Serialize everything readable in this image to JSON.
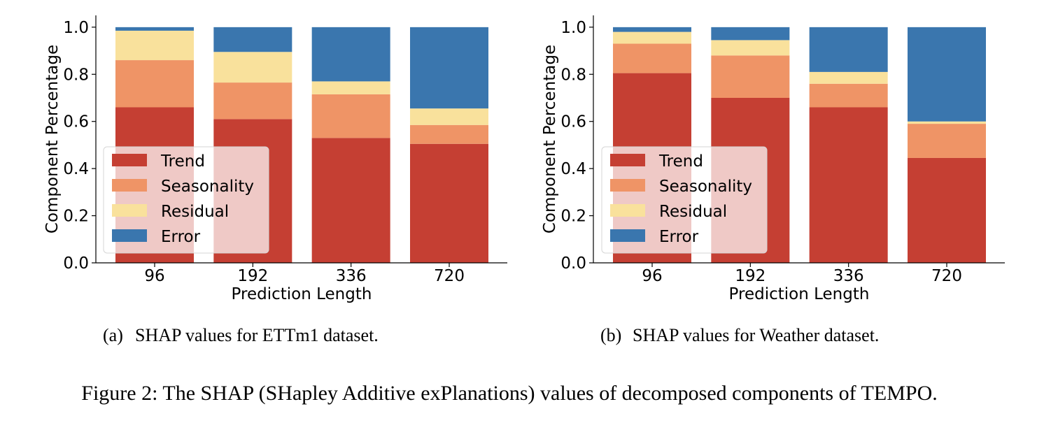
{
  "colors": {
    "Trend": "#c53f33",
    "Seasonality": "#ef9466",
    "Residual": "#f9e19c",
    "Error": "#3a76ae"
  },
  "chart_data": [
    {
      "type": "bar",
      "stacked": true,
      "caption_label": "(a)",
      "caption": "SHAP values for ETTm1 dataset.",
      "xlabel": "Prediction Length",
      "ylabel": "Component Percentage",
      "ylim": [
        0,
        1.05
      ],
      "yticks": [
        "0.0",
        "0.2",
        "0.4",
        "0.6",
        "0.8",
        "1.0"
      ],
      "categories": [
        "96",
        "192",
        "336",
        "720"
      ],
      "legend": "left",
      "series": [
        {
          "name": "Trend",
          "values": [
            0.66,
            0.61,
            0.53,
            0.505
          ]
        },
        {
          "name": "Seasonality",
          "values": [
            0.2,
            0.155,
            0.185,
            0.08
          ]
        },
        {
          "name": "Residual",
          "values": [
            0.125,
            0.13,
            0.055,
            0.07
          ]
        },
        {
          "name": "Error",
          "values": [
            0.015,
            0.105,
            0.23,
            0.345
          ]
        }
      ]
    },
    {
      "type": "bar",
      "stacked": true,
      "caption_label": "(b)",
      "caption": "SHAP values for Weather dataset.",
      "xlabel": "Prediction Length",
      "ylabel": "Component Percentage",
      "ylim": [
        0,
        1.05
      ],
      "yticks": [
        "0.0",
        "0.2",
        "0.4",
        "0.6",
        "0.8",
        "1.0"
      ],
      "categories": [
        "96",
        "192",
        "336",
        "720"
      ],
      "legend": "left",
      "series": [
        {
          "name": "Trend",
          "values": [
            0.805,
            0.7,
            0.66,
            0.445
          ]
        },
        {
          "name": "Seasonality",
          "values": [
            0.125,
            0.18,
            0.1,
            0.145
          ]
        },
        {
          "name": "Residual",
          "values": [
            0.05,
            0.065,
            0.05,
            0.01
          ]
        },
        {
          "name": "Error",
          "values": [
            0.02,
            0.055,
            0.19,
            0.4
          ]
        }
      ]
    }
  ],
  "figure_caption": "Figure 2: The SHAP (SHapley Additive exPlanations) values of decomposed components of TEMPO."
}
